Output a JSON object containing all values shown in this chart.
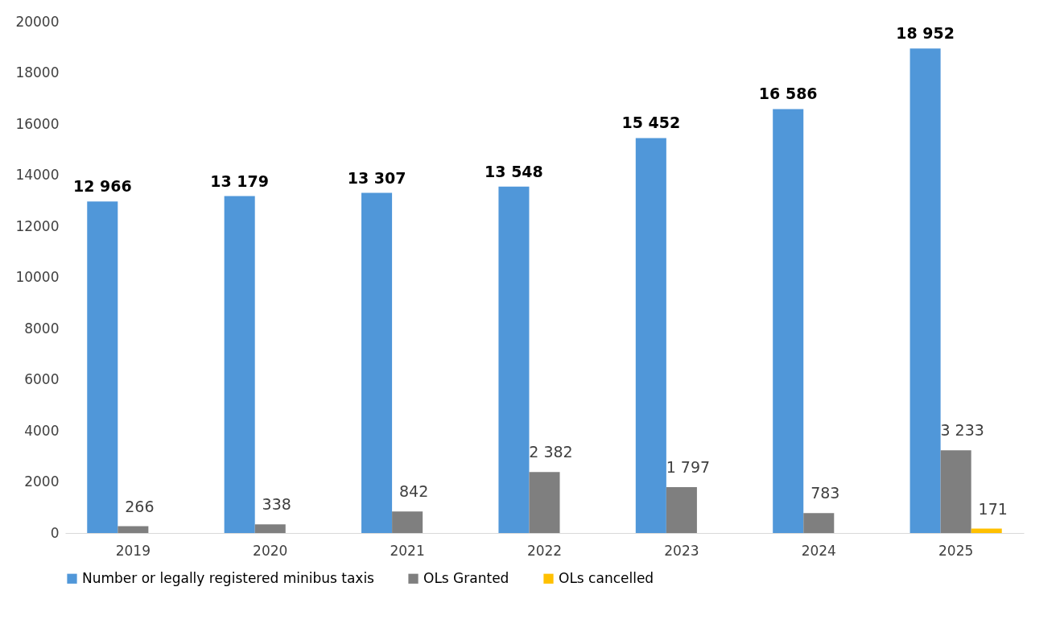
{
  "chart_data": {
    "type": "bar",
    "categories": [
      "2019",
      "2020",
      "2021",
      "2022",
      "2023",
      "2024",
      "2025"
    ],
    "series": [
      {
        "name": "Number or legally registered minibus taxis",
        "color": "#5097d9",
        "values": [
          12966,
          13179,
          13307,
          13548,
          15452,
          16586,
          18952
        ],
        "value_labels": [
          "12 966",
          "13 179",
          "13 307",
          "13 548",
          "15 452",
          "16 586",
          "18 952"
        ]
      },
      {
        "name": "OLs Granted",
        "color": "#7f7f7f",
        "values": [
          266,
          338,
          842,
          2382,
          1797,
          783,
          3233
        ],
        "value_labels": [
          "266",
          "338",
          "842",
          "2 382",
          "1 797",
          "783",
          "3 233"
        ]
      },
      {
        "name": "OLs cancelled",
        "color": "#ffc000",
        "values": [
          null,
          null,
          null,
          null,
          null,
          null,
          171
        ],
        "value_labels": [
          null,
          null,
          null,
          null,
          null,
          null,
          "171"
        ]
      }
    ],
    "ylim": [
      0,
      20000
    ],
    "yticks": [
      0,
      2000,
      4000,
      6000,
      8000,
      10000,
      12000,
      14000,
      16000,
      18000,
      20000
    ],
    "grid": false,
    "legend": "bottom"
  }
}
